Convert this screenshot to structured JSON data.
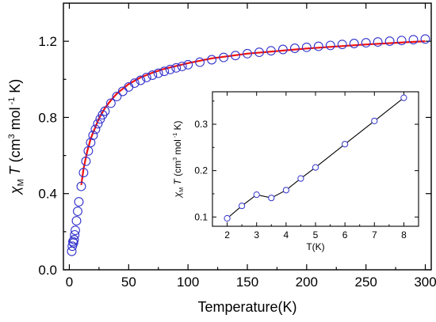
{
  "chart_data": [
    {
      "type": "scatter",
      "panel": "main",
      "xlabel": "Temperature(K)",
      "ylabel": {
        "chi": "χ",
        "sub": "M",
        "t": "T",
        "unit1": "(cm",
        "sup1": "3",
        "unit2": "mol",
        "sup2": "-1",
        "unit3": "K)"
      },
      "xlim": [
        -5,
        305
      ],
      "ylim": [
        0.0,
        1.4
      ],
      "xticks": [
        0,
        50,
        100,
        150,
        200,
        250,
        300
      ],
      "yticks": [
        0.0,
        0.4,
        0.8,
        1.2
      ],
      "ytick_labels": [
        "0.0",
        "0.4",
        "0.8",
        "1.2"
      ],
      "marker_color": "#3333cc",
      "fit_color": "#ee1111",
      "series": [
        {
          "kind": "markers",
          "x": [
            2,
            2.5,
            3,
            3.5,
            4,
            4.5,
            5,
            6,
            7,
            8,
            10,
            12,
            14,
            16,
            18,
            20,
            22,
            24,
            26,
            28,
            30,
            35,
            40,
            45,
            50,
            55,
            60,
            65,
            70,
            75,
            80,
            85,
            90,
            95,
            100,
            110,
            120,
            130,
            140,
            150,
            160,
            170,
            180,
            190,
            200,
            210,
            220,
            230,
            240,
            250,
            260,
            270,
            280,
            290,
            300
          ],
          "y": [
            0.097,
            0.124,
            0.148,
            0.141,
            0.158,
            0.183,
            0.207,
            0.257,
            0.307,
            0.357,
            0.438,
            0.51,
            0.57,
            0.624,
            0.668,
            0.706,
            0.738,
            0.767,
            0.792,
            0.814,
            0.833,
            0.875,
            0.91,
            0.937,
            0.96,
            0.98,
            0.995,
            1.01,
            1.022,
            1.032,
            1.042,
            1.052,
            1.06,
            1.068,
            1.077,
            1.09,
            1.103,
            1.115,
            1.125,
            1.135,
            1.142,
            1.15,
            1.157,
            1.163,
            1.168,
            1.173,
            1.178,
            1.183,
            1.188,
            1.192,
            1.196,
            1.2,
            1.204,
            1.208,
            1.212
          ]
        },
        {
          "kind": "line",
          "x": [
            10,
            12,
            15,
            18,
            20,
            25,
            30,
            35,
            40,
            50,
            60,
            70,
            80,
            100,
            120,
            150,
            200,
            250,
            300
          ],
          "y": [
            0.445,
            0.53,
            0.62,
            0.688,
            0.72,
            0.795,
            0.85,
            0.89,
            0.925,
            0.975,
            1.01,
            1.035,
            1.055,
            1.085,
            1.11,
            1.135,
            1.162,
            1.183,
            1.2
          ]
        }
      ]
    },
    {
      "type": "line",
      "panel": "inset",
      "xlabel": "T(K)",
      "ylabel": {
        "chi": "χ",
        "sub": "M",
        "t": "T",
        "unit1": "(cm",
        "sup1": "3",
        "unit2": "mol",
        "sup2": "-1",
        "unit3": "K)"
      },
      "xlim": [
        1.5,
        8.5
      ],
      "ylim": [
        0.08,
        0.37
      ],
      "xticks": [
        2,
        3,
        4,
        5,
        6,
        7,
        8
      ],
      "yticks": [
        0.1,
        0.2,
        0.3
      ],
      "ytick_labels": [
        "0.1",
        "0.2",
        "0.3"
      ],
      "marker_color": "#3333cc",
      "line_color": "#000000",
      "series": [
        {
          "kind": "markers+line",
          "x": [
            2,
            2.5,
            3,
            3.5,
            4,
            4.5,
            5,
            6,
            7,
            8
          ],
          "y": [
            0.097,
            0.124,
            0.148,
            0.141,
            0.158,
            0.183,
            0.207,
            0.257,
            0.307,
            0.357
          ]
        }
      ]
    }
  ]
}
